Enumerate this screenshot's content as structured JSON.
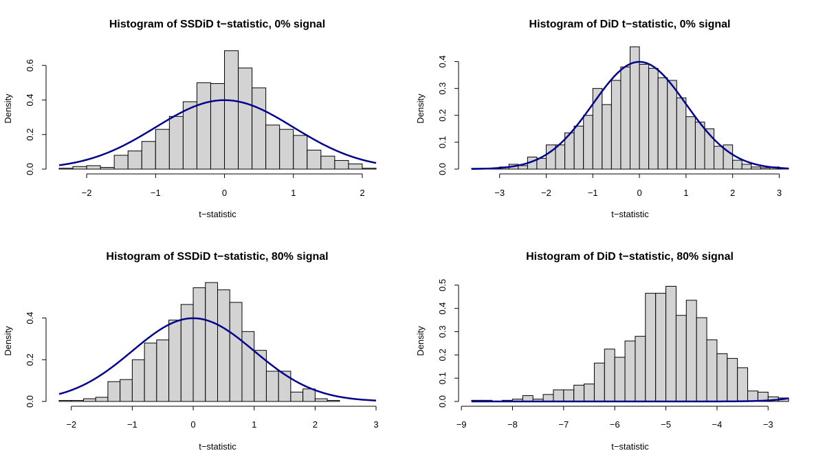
{
  "colors": {
    "bar_fill": "#d3d3d3",
    "bar_stroke": "#000000",
    "curve": "#00008b",
    "background": "#ffffff"
  },
  "chart_data": [
    {
      "type": "bar",
      "subtype": "histogram",
      "title": "Histogram of SSDiD t−statistic, 0% signal",
      "xlabel": "t−statistic",
      "ylabel": "Density",
      "xlim": [
        -2.4,
        2.2
      ],
      "ylim": [
        0,
        0.7
      ],
      "xticks": [
        -2,
        -1,
        0,
        1,
        2
      ],
      "xtick_labels": [
        "−2",
        "−1",
        "0",
        "1",
        "2"
      ],
      "yticks": [
        0,
        0.2,
        0.4,
        0.6
      ],
      "ytick_labels": [
        "0.0",
        "0.2",
        "0.4",
        "0.6"
      ],
      "bin_width": 0.2,
      "bin_start": -2.4,
      "values": [
        0.005,
        0.015,
        0.02,
        0.01,
        0.08,
        0.105,
        0.16,
        0.23,
        0.305,
        0.39,
        0.5,
        0.495,
        0.685,
        0.585,
        0.47,
        0.255,
        0.23,
        0.195,
        0.11,
        0.075,
        0.05,
        0.03,
        0.005
      ],
      "curve": "normal",
      "curve_mean": 0,
      "curve_sd": 1
    },
    {
      "type": "bar",
      "subtype": "histogram",
      "title": "Histogram of DiD t−statistic, 0% signal",
      "xlabel": "t−statistic",
      "ylabel": "Density",
      "xlim": [
        -3.6,
        3.2
      ],
      "ylim": [
        0,
        0.45
      ],
      "xticks": [
        -3,
        -2,
        -1,
        0,
        1,
        2,
        3
      ],
      "xtick_labels": [
        "−3",
        "−2",
        "−1",
        "0",
        "1",
        "2",
        "3"
      ],
      "yticks": [
        0,
        0.1,
        0.2,
        0.3,
        0.4
      ],
      "ytick_labels": [
        "0.0",
        "0.1",
        "0.2",
        "0.3",
        "0.4"
      ],
      "bin_width": 0.2,
      "bin_start": -3.6,
      "values": [
        0.003,
        0.003,
        0.003,
        0.008,
        0.018,
        0.013,
        0.045,
        0.04,
        0.09,
        0.09,
        0.135,
        0.16,
        0.2,
        0.3,
        0.24,
        0.33,
        0.38,
        0.455,
        0.39,
        0.375,
        0.34,
        0.33,
        0.265,
        0.195,
        0.175,
        0.15,
        0.085,
        0.09,
        0.033,
        0.018,
        0.008,
        0.005,
        0.008,
        0.003
      ],
      "curve": "normal",
      "curve_mean": 0,
      "curve_sd": 1
    },
    {
      "type": "bar",
      "subtype": "histogram",
      "title": "Histogram of SSDiD t−statistic, 80% signal",
      "xlabel": "t−statistic",
      "ylabel": "Density",
      "xlim": [
        -2.2,
        3.0
      ],
      "ylim": [
        0,
        0.58
      ],
      "xticks": [
        -2,
        -1,
        0,
        1,
        2,
        3
      ],
      "xtick_labels": [
        "−2",
        "−1",
        "0",
        "1",
        "2",
        "3"
      ],
      "yticks": [
        0,
        0.2,
        0.4
      ],
      "ytick_labels": [
        "0.0",
        "0.2",
        "0.4"
      ],
      "bin_width": 0.2,
      "bin_start": -2.2,
      "values": [
        0.005,
        0.005,
        0.013,
        0.02,
        0.095,
        0.105,
        0.2,
        0.28,
        0.295,
        0.39,
        0.465,
        0.545,
        0.57,
        0.535,
        0.475,
        0.335,
        0.245,
        0.145,
        0.145,
        0.045,
        0.06,
        0.013,
        0.005
      ],
      "curve": "normal",
      "curve_mean": 0,
      "curve_sd": 1
    },
    {
      "type": "bar",
      "subtype": "histogram",
      "title": "Histogram of DiD t−statistic, 80% signal",
      "xlabel": "t−statistic",
      "ylabel": "Density",
      "xlim": [
        -8.8,
        -2.6
      ],
      "ylim": [
        0,
        0.52
      ],
      "xticks": [
        -9,
        -8,
        -7,
        -6,
        -5,
        -4,
        -3
      ],
      "xtick_labels": [
        "−9",
        "−8",
        "−7",
        "−6",
        "−5",
        "−4",
        "−3"
      ],
      "yticks": [
        0,
        0.1,
        0.2,
        0.3,
        0.4,
        0.5
      ],
      "ytick_labels": [
        "0.0",
        "0.1",
        "0.2",
        "0.3",
        "0.4",
        "0.5"
      ],
      "bin_width": 0.2,
      "bin_start": -8.8,
      "values": [
        0.005,
        0.005,
        0.0,
        0.005,
        0.01,
        0.025,
        0.01,
        0.03,
        0.05,
        0.05,
        0.07,
        0.075,
        0.165,
        0.225,
        0.19,
        0.26,
        0.28,
        0.465,
        0.465,
        0.495,
        0.37,
        0.435,
        0.36,
        0.265,
        0.205,
        0.185,
        0.145,
        0.045,
        0.04,
        0.02,
        0.015
      ],
      "curve": "normal",
      "curve_mean": 0,
      "curve_sd": 1
    }
  ]
}
